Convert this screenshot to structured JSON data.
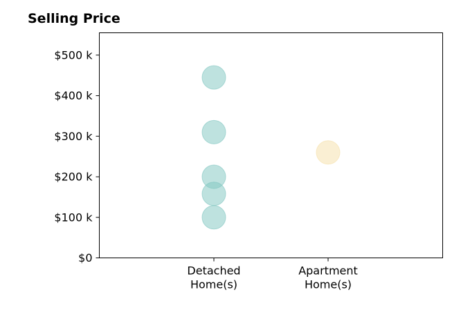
{
  "chart_data": {
    "type": "scatter",
    "title": "Selling Price",
    "xlabel": "",
    "ylabel": "",
    "categories": [
      "Detached\nHome(s)",
      "Apartment\nHome(s)"
    ],
    "ylim": [
      0,
      555
    ],
    "yticks": [
      0,
      100,
      200,
      300,
      400,
      500
    ],
    "ytick_labels": [
      "$0",
      "$100 k",
      "$200 k",
      "$300 k",
      "$400 k",
      "$500 k"
    ],
    "grid": false,
    "legend": "none",
    "series": [
      {
        "category": "Detached\nHome(s)",
        "color": "#7ec5bf",
        "values": [
          445,
          310,
          200,
          158,
          100
        ]
      },
      {
        "category": "Apartment\nHome(s)",
        "color": "#f5dfa8",
        "values": [
          260
        ]
      }
    ]
  }
}
